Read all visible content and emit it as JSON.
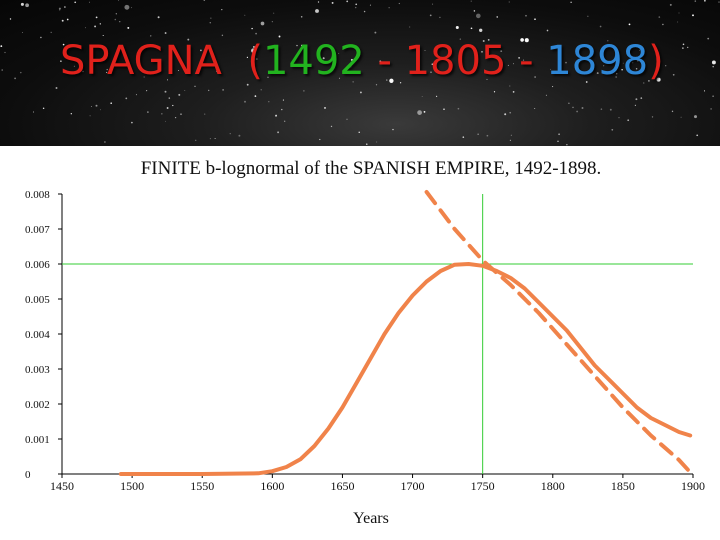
{
  "slide": {
    "title_parts": [
      {
        "text": "SPAGNA  (",
        "color": "#e0211b"
      },
      {
        "text": "1492",
        "color": "#22b31f"
      },
      {
        "text": " - ",
        "color": "#e0211b"
      },
      {
        "text": "1805",
        "color": "#e0211b"
      },
      {
        "text": " - ",
        "color": "#e0211b"
      },
      {
        "text": "1898",
        "color": "#2e86d6"
      },
      {
        "text": ")",
        "color": "#e0211b"
      }
    ]
  },
  "chart_data": {
    "type": "line",
    "title": "FINITE b-lognormal of the SPANISH EMPIRE, 1492-1898.",
    "xlabel": "Years",
    "ylabel": "",
    "xlim": [
      1450,
      1900
    ],
    "ylim": [
      0,
      0.008
    ],
    "xticks": [
      "1450",
      "1500",
      "1550",
      "1600",
      "1650",
      "1700",
      "1750",
      "1800",
      "1850",
      "1900"
    ],
    "yticks": [
      "0",
      "0.001",
      "0.002",
      "0.003",
      "0.004",
      "0.005",
      "0.006",
      "0.007",
      "0.008"
    ],
    "grid": false,
    "reference_lines": {
      "x": 1750,
      "y": 0.006,
      "color": "#33cc33"
    },
    "series": [
      {
        "style": "solid",
        "color": "#f0834a",
        "x": [
          1492,
          1500,
          1550,
          1590,
          1600,
          1610,
          1620,
          1630,
          1640,
          1650,
          1660,
          1670,
          1680,
          1690,
          1700,
          1710,
          1720,
          1730,
          1740,
          1750,
          1760,
          1770,
          1780,
          1790,
          1800,
          1810,
          1820,
          1830,
          1840,
          1850,
          1860,
          1870,
          1880,
          1890,
          1898
        ],
        "y": [
          0,
          0,
          0,
          2e-05,
          8e-05,
          0.0002,
          0.00042,
          0.0008,
          0.0013,
          0.0019,
          0.0026,
          0.0033,
          0.004,
          0.0046,
          0.0051,
          0.0055,
          0.0058,
          0.00598,
          0.006,
          0.00595,
          0.0058,
          0.0056,
          0.0053,
          0.0049,
          0.0045,
          0.0041,
          0.0036,
          0.0031,
          0.0027,
          0.0023,
          0.0019,
          0.0016,
          0.0014,
          0.0012,
          0.0011
        ]
      },
      {
        "style": "dashed",
        "color": "#f0834a",
        "x": [
          1710,
          1730,
          1750,
          1770,
          1790,
          1810,
          1830,
          1850,
          1870,
          1890,
          1898
        ],
        "y": [
          0.0081,
          0.007,
          0.0061,
          0.0054,
          0.0046,
          0.0037,
          0.0028,
          0.0019,
          0.0011,
          0.0004,
          5e-05
        ]
      }
    ]
  }
}
